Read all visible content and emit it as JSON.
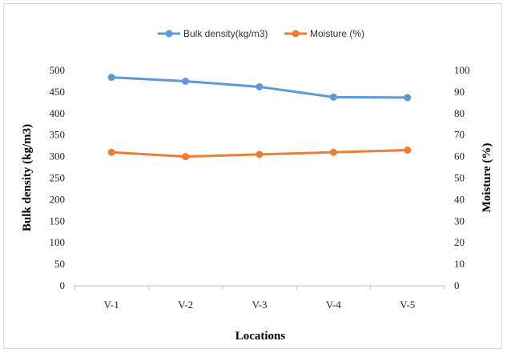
{
  "chart_data": {
    "type": "line",
    "xlabel": "Locations",
    "ylabel": "Bulk density (kg/m3)",
    "ylabel_right": "Moisture (%)",
    "categories": [
      "V-1",
      "V-2",
      "V-3",
      "V-4",
      "V-5"
    ],
    "ylim": [
      0,
      500
    ],
    "ylim_right": [
      0,
      100
    ],
    "yticks": [
      "0",
      "50",
      "100",
      "150",
      "200",
      "250",
      "300",
      "350",
      "400",
      "450",
      "500"
    ],
    "yticks_right": [
      "0",
      "10",
      "20",
      "30",
      "40",
      "50",
      "60",
      "70",
      "80",
      "90",
      "100"
    ],
    "grid": false,
    "legend_position": "top",
    "series": [
      {
        "name": "Bulk density(kg/m3)",
        "axis": "left",
        "color": "#5b9bd5",
        "values": [
          484,
          475,
          462,
          438,
          437
        ]
      },
      {
        "name": "Moisture (%)",
        "axis": "right",
        "color": "#ed7d31",
        "values": [
          62,
          60,
          61,
          62,
          63
        ]
      }
    ]
  }
}
